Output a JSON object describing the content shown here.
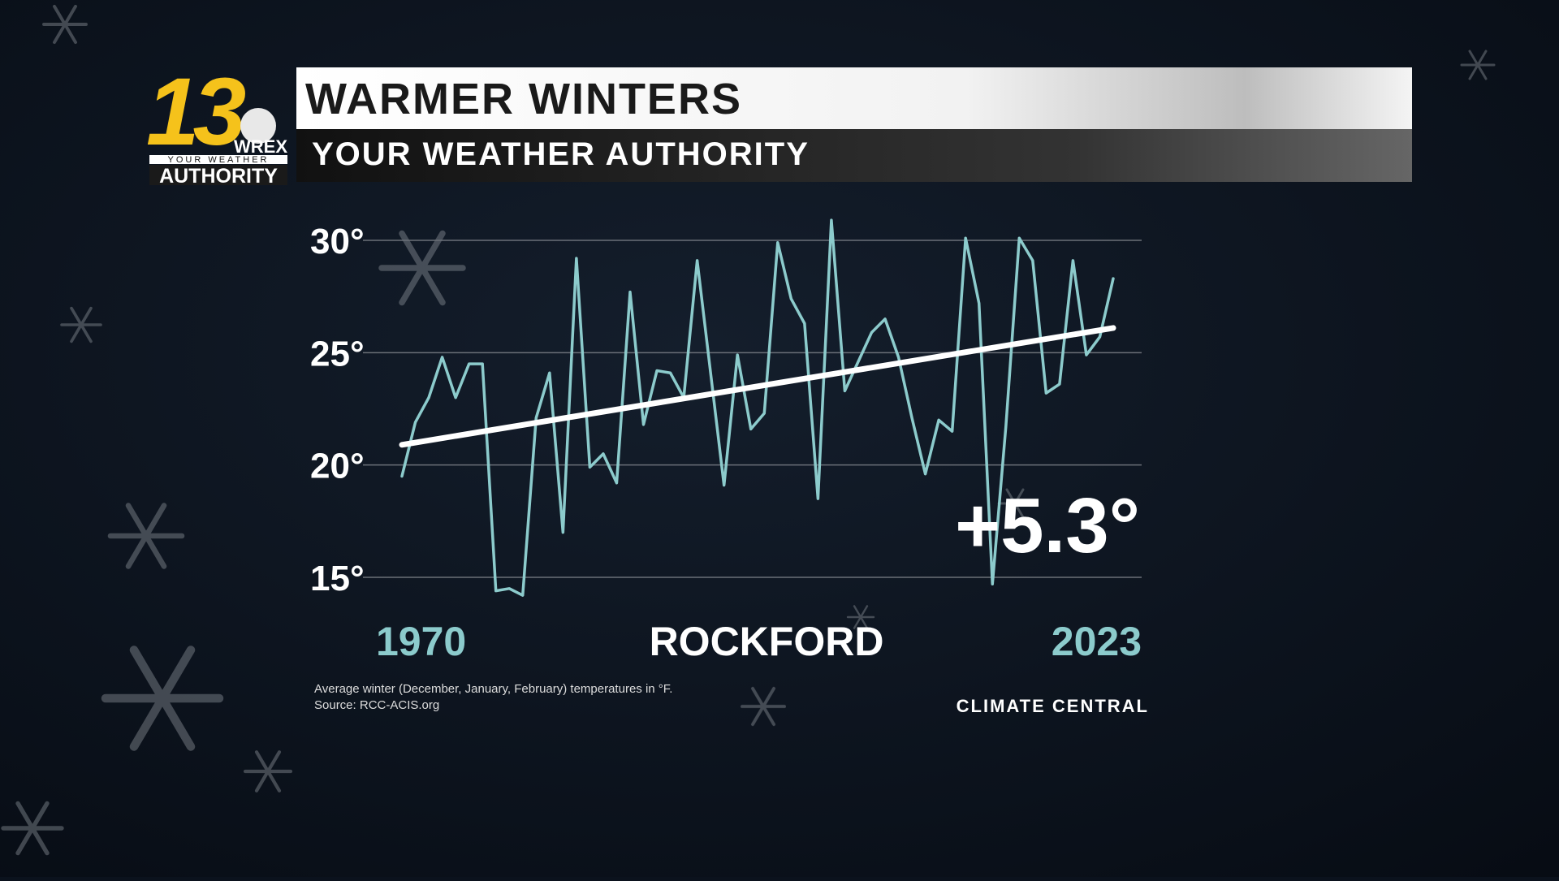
{
  "logo": {
    "number": "13",
    "call_sign": "WREX",
    "line1": "YOUR WEATHER",
    "line2": "AUTHORITY"
  },
  "chart_data": {
    "type": "line",
    "title": "WARMER WINTERS",
    "subtitle": "YOUR WEATHER AUTHORITY",
    "x": [
      1970,
      1971,
      1972,
      1973,
      1974,
      1975,
      1976,
      1977,
      1978,
      1979,
      1980,
      1981,
      1982,
      1983,
      1984,
      1985,
      1986,
      1987,
      1988,
      1989,
      1990,
      1991,
      1992,
      1993,
      1994,
      1995,
      1996,
      1997,
      1998,
      1999,
      2000,
      2001,
      2002,
      2003,
      2004,
      2005,
      2006,
      2007,
      2008,
      2009,
      2010,
      2011,
      2012,
      2013,
      2014,
      2015,
      2016,
      2017,
      2018,
      2019,
      2020,
      2021,
      2022,
      2023
    ],
    "series": [
      {
        "color": "#8ccbcc",
        "values": [
          19.5,
          21.9,
          23.0,
          24.8,
          23.0,
          24.5,
          24.5,
          14.4,
          14.5,
          14.2,
          22.1,
          24.1,
          17.0,
          29.2,
          19.9,
          20.5,
          19.2,
          27.7,
          21.8,
          24.2,
          24.1,
          23.0,
          29.1,
          24.1,
          19.1,
          24.9,
          21.6,
          22.3,
          29.9,
          27.4,
          26.3,
          18.5,
          30.9,
          23.3,
          24.6,
          25.9,
          26.5,
          24.8,
          22.1,
          19.6,
          22.0,
          21.5,
          30.1,
          27.2,
          14.7,
          21.7,
          30.1,
          29.1,
          23.2,
          23.6,
          29.1,
          24.9,
          25.7,
          28.3
        ]
      },
      {
        "color": "#ffffff",
        "x": [
          1970,
          2023
        ],
        "values": [
          20.9,
          26.1
        ]
      }
    ],
    "xlim": [
      1970,
      2023
    ],
    "xticks": [
      1970,
      2023
    ],
    "ylim": [
      15,
      30
    ],
    "yticks": [
      {
        "value": 15,
        "label": "15°"
      },
      {
        "value": 20,
        "label": "20°"
      },
      {
        "value": 25,
        "label": "25°"
      },
      {
        "value": 30,
        "label": "30°"
      }
    ],
    "grid": true,
    "location": "ROCKFORD",
    "annotation": "+5.3°",
    "footnotes": [
      "Average winter (December, January, February) temperatures in °F.",
      "Source: RCC-ACIS.org"
    ],
    "brand": "CLIMATE CENTRAL"
  }
}
